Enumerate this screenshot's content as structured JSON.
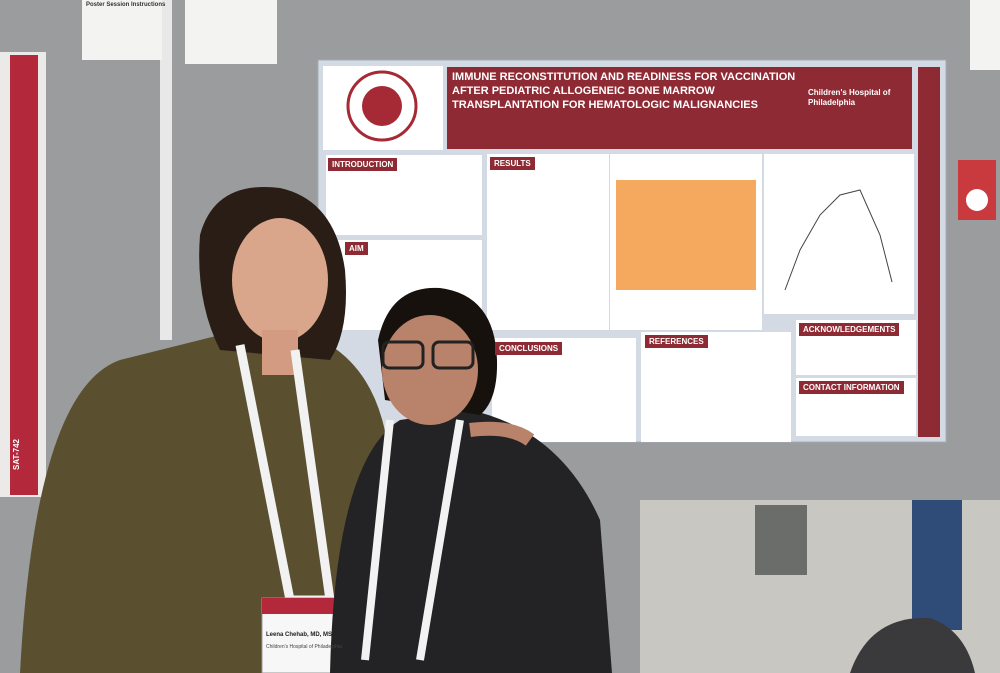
{
  "notice": {
    "title": "Poster Session Instructions"
  },
  "side_poster": {
    "code": "SAT-742"
  },
  "poster": {
    "title": "IMMUNE RECONSTITUTION AND READINESS FOR VACCINATION AFTER PEDIATRIC ALLOGENEIC BONE MARROW TRANSPLANTATION FOR HEMATOLOGIC MALIGNANCIES",
    "institution": "Children's Hospital of Philadelphia",
    "sections": [
      "INTRODUCTION",
      "AIM",
      "RESULTS",
      "CONCLUSIONS",
      "REFERENCES",
      "ACKNOWLEDGEMENTS",
      "CONTACT INFORMATION"
    ]
  },
  "badge": {
    "name": "Leena Chehab, MD, MS",
    "affiliation": "Children's Hospital of Philadelphia"
  }
}
